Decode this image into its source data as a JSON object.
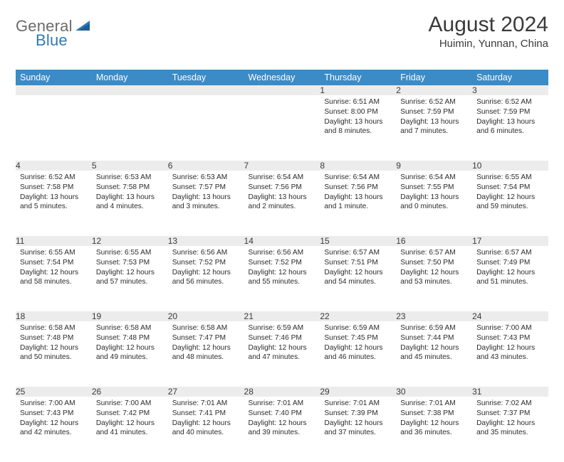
{
  "brand": {
    "word1": "General",
    "word2": "Blue",
    "logo_color": "#2f79b5",
    "text_color": "#6b6b6b"
  },
  "header": {
    "title": "August 2024",
    "subtitle": "Huimin, Yunnan, China"
  },
  "style": {
    "header_bg": "#3b8bc7",
    "header_fg": "#ffffff",
    "daynum_bg": "#ececec",
    "rule_color": "#3b8bc7",
    "body_text": "#2b2b2b"
  },
  "weekdays": [
    "Sunday",
    "Monday",
    "Tuesday",
    "Wednesday",
    "Thursday",
    "Friday",
    "Saturday"
  ],
  "weeks": [
    [
      null,
      null,
      null,
      null,
      {
        "n": "1",
        "sunrise": "6:51 AM",
        "sunset": "8:00 PM",
        "daylight": "13 hours and 8 minutes."
      },
      {
        "n": "2",
        "sunrise": "6:52 AM",
        "sunset": "7:59 PM",
        "daylight": "13 hours and 7 minutes."
      },
      {
        "n": "3",
        "sunrise": "6:52 AM",
        "sunset": "7:59 PM",
        "daylight": "13 hours and 6 minutes."
      }
    ],
    [
      {
        "n": "4",
        "sunrise": "6:52 AM",
        "sunset": "7:58 PM",
        "daylight": "13 hours and 5 minutes."
      },
      {
        "n": "5",
        "sunrise": "6:53 AM",
        "sunset": "7:58 PM",
        "daylight": "13 hours and 4 minutes."
      },
      {
        "n": "6",
        "sunrise": "6:53 AM",
        "sunset": "7:57 PM",
        "daylight": "13 hours and 3 minutes."
      },
      {
        "n": "7",
        "sunrise": "6:54 AM",
        "sunset": "7:56 PM",
        "daylight": "13 hours and 2 minutes."
      },
      {
        "n": "8",
        "sunrise": "6:54 AM",
        "sunset": "7:56 PM",
        "daylight": "13 hours and 1 minute."
      },
      {
        "n": "9",
        "sunrise": "6:54 AM",
        "sunset": "7:55 PM",
        "daylight": "13 hours and 0 minutes."
      },
      {
        "n": "10",
        "sunrise": "6:55 AM",
        "sunset": "7:54 PM",
        "daylight": "12 hours and 59 minutes."
      }
    ],
    [
      {
        "n": "11",
        "sunrise": "6:55 AM",
        "sunset": "7:54 PM",
        "daylight": "12 hours and 58 minutes."
      },
      {
        "n": "12",
        "sunrise": "6:55 AM",
        "sunset": "7:53 PM",
        "daylight": "12 hours and 57 minutes."
      },
      {
        "n": "13",
        "sunrise": "6:56 AM",
        "sunset": "7:52 PM",
        "daylight": "12 hours and 56 minutes."
      },
      {
        "n": "14",
        "sunrise": "6:56 AM",
        "sunset": "7:52 PM",
        "daylight": "12 hours and 55 minutes."
      },
      {
        "n": "15",
        "sunrise": "6:57 AM",
        "sunset": "7:51 PM",
        "daylight": "12 hours and 54 minutes."
      },
      {
        "n": "16",
        "sunrise": "6:57 AM",
        "sunset": "7:50 PM",
        "daylight": "12 hours and 53 minutes."
      },
      {
        "n": "17",
        "sunrise": "6:57 AM",
        "sunset": "7:49 PM",
        "daylight": "12 hours and 51 minutes."
      }
    ],
    [
      {
        "n": "18",
        "sunrise": "6:58 AM",
        "sunset": "7:48 PM",
        "daylight": "12 hours and 50 minutes."
      },
      {
        "n": "19",
        "sunrise": "6:58 AM",
        "sunset": "7:48 PM",
        "daylight": "12 hours and 49 minutes."
      },
      {
        "n": "20",
        "sunrise": "6:58 AM",
        "sunset": "7:47 PM",
        "daylight": "12 hours and 48 minutes."
      },
      {
        "n": "21",
        "sunrise": "6:59 AM",
        "sunset": "7:46 PM",
        "daylight": "12 hours and 47 minutes."
      },
      {
        "n": "22",
        "sunrise": "6:59 AM",
        "sunset": "7:45 PM",
        "daylight": "12 hours and 46 minutes."
      },
      {
        "n": "23",
        "sunrise": "6:59 AM",
        "sunset": "7:44 PM",
        "daylight": "12 hours and 45 minutes."
      },
      {
        "n": "24",
        "sunrise": "7:00 AM",
        "sunset": "7:43 PM",
        "daylight": "12 hours and 43 minutes."
      }
    ],
    [
      {
        "n": "25",
        "sunrise": "7:00 AM",
        "sunset": "7:43 PM",
        "daylight": "12 hours and 42 minutes."
      },
      {
        "n": "26",
        "sunrise": "7:00 AM",
        "sunset": "7:42 PM",
        "daylight": "12 hours and 41 minutes."
      },
      {
        "n": "27",
        "sunrise": "7:01 AM",
        "sunset": "7:41 PM",
        "daylight": "12 hours and 40 minutes."
      },
      {
        "n": "28",
        "sunrise": "7:01 AM",
        "sunset": "7:40 PM",
        "daylight": "12 hours and 39 minutes."
      },
      {
        "n": "29",
        "sunrise": "7:01 AM",
        "sunset": "7:39 PM",
        "daylight": "12 hours and 37 minutes."
      },
      {
        "n": "30",
        "sunrise": "7:01 AM",
        "sunset": "7:38 PM",
        "daylight": "12 hours and 36 minutes."
      },
      {
        "n": "31",
        "sunrise": "7:02 AM",
        "sunset": "7:37 PM",
        "daylight": "12 hours and 35 minutes."
      }
    ]
  ],
  "labels": {
    "sunrise": "Sunrise: ",
    "sunset": "Sunset: ",
    "daylight": "Daylight: "
  }
}
